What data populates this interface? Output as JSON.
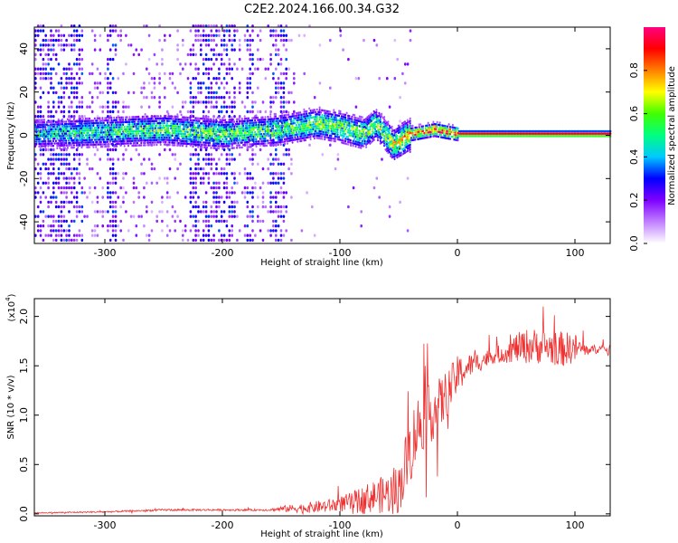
{
  "title": "C2E2.2024.166.00.34.G32",
  "chart_data": [
    {
      "type": "heatmap",
      "xlabel": "Height of straight line (km)",
      "ylabel": "Frequency (Hz)",
      "xlim": [
        -360,
        130
      ],
      "ylim": [
        -50,
        50
      ],
      "x_ticks": [
        -300,
        -200,
        -100,
        0,
        100
      ],
      "y_ticks": [
        -40,
        -20,
        0,
        20,
        40
      ],
      "colorbar": {
        "label": "Normalized spectral amplitude",
        "range": [
          0,
          1
        ],
        "ticks": [
          "0.0",
          "0.2",
          "0.4",
          "0.6",
          "0.8"
        ],
        "colormap": [
          "#ffffff",
          "#c080ff",
          "#7f00ff",
          "#0000ff",
          "#00c8ff",
          "#00ff80",
          "#40ff00",
          "#ffff00",
          "#ff8000",
          "#ff0000",
          "#ff0080"
        ]
      },
      "ridge": {
        "description_points": [
          [
            -360,
            0
          ],
          [
            -300,
            1
          ],
          [
            -250,
            2
          ],
          [
            -200,
            0
          ],
          [
            -150,
            2
          ],
          [
            -120,
            5
          ],
          [
            -100,
            3
          ],
          [
            -80,
            0
          ],
          [
            -70,
            5
          ],
          [
            -55,
            -5
          ],
          [
            -40,
            0
          ],
          [
            -20,
            2
          ],
          [
            0,
            0
          ],
          [
            130,
            0
          ]
        ],
        "amplitude_points": [
          [
            -360,
            0.45
          ],
          [
            -250,
            0.55
          ],
          [
            -150,
            0.55
          ],
          [
            -110,
            0.6
          ],
          [
            -60,
            0.6
          ],
          [
            -30,
            0.9
          ],
          [
            130,
            0.95
          ]
        ]
      },
      "noise_bands_x": [
        [
          -360,
          -320
        ],
        [
          -300,
          -290
        ],
        [
          -230,
          -190
        ],
        [
          -180,
          -175
        ],
        [
          -160,
          -145
        ]
      ]
    },
    {
      "type": "line",
      "xlabel": "Height of straight line (km)",
      "ylabel": "SNR (10 * v/v)",
      "y_multiplier": "(x10",
      "y_multiplier_exp": "4",
      "y_multiplier_close": ")",
      "xlim": [
        -360,
        130
      ],
      "ylim": [
        -0.02,
        2.18
      ],
      "x_ticks": [
        -300,
        -200,
        -100,
        0,
        100
      ],
      "y_ticks": [
        "0.0",
        "0.5",
        "1.0",
        "1.5",
        "2.0"
      ],
      "color": "#f03030",
      "series": [
        {
          "x": [
            -360,
            -300,
            -250,
            -200,
            -160,
            -150,
            -130,
            -110,
            -100,
            -90,
            -80,
            -70,
            -60,
            -50,
            -45,
            -40,
            -35,
            -30,
            -25,
            -20,
            -15,
            -10,
            -5,
            0,
            10,
            20,
            30,
            40,
            50,
            60,
            70,
            80,
            90,
            100,
            110,
            120,
            130
          ],
          "values": [
            0.01,
            0.02,
            0.04,
            0.04,
            0.04,
            0.05,
            0.06,
            0.08,
            0.1,
            0.12,
            0.15,
            0.18,
            0.2,
            0.25,
            0.45,
            0.65,
            0.85,
            0.95,
            1.0,
            1.05,
            1.1,
            1.2,
            1.3,
            1.4,
            1.5,
            1.55,
            1.6,
            1.63,
            1.68,
            1.7,
            1.7,
            1.68,
            1.67,
            1.68,
            1.66,
            1.67,
            1.67
          ],
          "noise": [
            0.005,
            0.008,
            0.01,
            0.01,
            0.01,
            0.03,
            0.05,
            0.07,
            0.08,
            0.1,
            0.14,
            0.17,
            0.2,
            0.25,
            0.32,
            0.35,
            0.35,
            0.32,
            0.3,
            0.3,
            0.28,
            0.25,
            0.22,
            0.2,
            0.12,
            0.1,
            0.08,
            0.1,
            0.15,
            0.18,
            0.18,
            0.17,
            0.18,
            0.15,
            0.05,
            0.04,
            0.04
          ]
        }
      ]
    }
  ]
}
